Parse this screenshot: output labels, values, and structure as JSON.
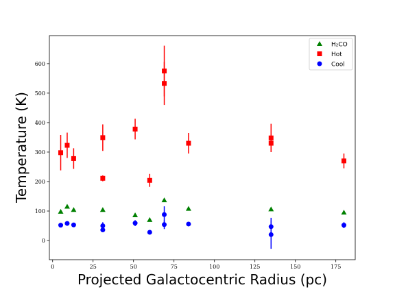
{
  "chart_data": {
    "type": "scatter",
    "xlabel": "Projected Galactocentric Radius (pc)",
    "ylabel": "Temperature (K)",
    "xlim": [
      -2,
      187
    ],
    "ylim": [
      -65,
      695
    ],
    "xticks": [
      0,
      25,
      50,
      75,
      100,
      125,
      150,
      175
    ],
    "yticks": [
      0,
      100,
      200,
      300,
      400,
      500,
      600
    ],
    "legend_position": "top-right",
    "series": [
      {
        "name": "H₂CO",
        "color": "#008000",
        "marker": "triangle",
        "points": [
          {
            "x": 5,
            "y": 98
          },
          {
            "x": 9,
            "y": 115
          },
          {
            "x": 13,
            "y": 104
          },
          {
            "x": 31,
            "y": 104
          },
          {
            "x": 51,
            "y": 86
          },
          {
            "x": 60,
            "y": 70
          },
          {
            "x": 69,
            "y": 137
          },
          {
            "x": 84,
            "y": 108
          },
          {
            "x": 135,
            "y": 106
          },
          {
            "x": 180,
            "y": 95
          }
        ]
      },
      {
        "name": "Hot",
        "color": "#ff0000",
        "marker": "square",
        "points": [
          {
            "x": 5,
            "y": 298,
            "err": 60
          },
          {
            "x": 9,
            "y": 323,
            "err": 43
          },
          {
            "x": 13,
            "y": 278,
            "err": 35
          },
          {
            "x": 31,
            "y": 349,
            "err": 45
          },
          {
            "x": 31,
            "y": 211,
            "err": 10
          },
          {
            "x": 51,
            "y": 378,
            "err": 35
          },
          {
            "x": 60,
            "y": 204,
            "err": 22
          },
          {
            "x": 69,
            "y": 575,
            "err": 86
          },
          {
            "x": 69,
            "y": 533,
            "err": 73
          },
          {
            "x": 84,
            "y": 330,
            "err": 35
          },
          {
            "x": 135,
            "y": 348,
            "err": 48
          },
          {
            "x": 135,
            "y": 330,
            "err": 30
          },
          {
            "x": 180,
            "y": 270,
            "err": 25
          }
        ]
      },
      {
        "name": "Cool",
        "color": "#0000ff",
        "marker": "circle",
        "points": [
          {
            "x": 5,
            "y": 52,
            "err": 0
          },
          {
            "x": 9,
            "y": 58,
            "err": 0
          },
          {
            "x": 13,
            "y": 53,
            "err": 0
          },
          {
            "x": 31,
            "y": 50,
            "err": 12
          },
          {
            "x": 31,
            "y": 36,
            "err": 0
          },
          {
            "x": 51,
            "y": 59,
            "err": 10
          },
          {
            "x": 60,
            "y": 28,
            "err": 0
          },
          {
            "x": 69,
            "y": 88,
            "err": 28
          },
          {
            "x": 69,
            "y": 54,
            "err": 15
          },
          {
            "x": 84,
            "y": 56,
            "err": 0
          },
          {
            "x": 135,
            "y": 47,
            "err": 30
          },
          {
            "x": 135,
            "y": 20,
            "err": 48
          },
          {
            "x": 180,
            "y": 52,
            "err": 10
          }
        ]
      }
    ]
  }
}
